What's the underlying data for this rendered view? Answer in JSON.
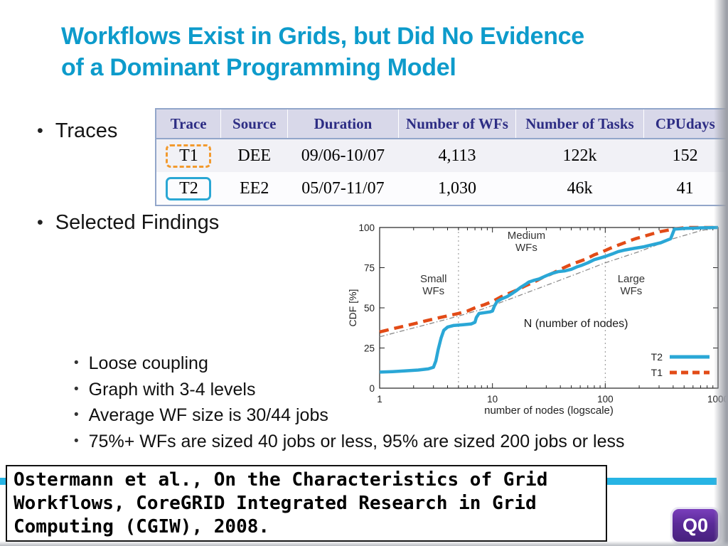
{
  "slide": {
    "title_line1": "Workflows Exist in Grids, but Did No Evidence",
    "title_line2": "of a Dominant Programming Model",
    "title_color": "#0d9bcb",
    "bullet_traces": "Traces",
    "bullet_findings": "Selected Findings",
    "sub_bullets": [
      "Loose coupling",
      "Graph with 3-4 levels",
      "Average WF size is 30/44 jobs",
      "75%+ WFs are sized 40 jobs or less, 95% are sized 200 jobs or less"
    ],
    "citation_lines": [
      "Ostermann et al., On the Characteristics of Grid",
      "Workflows, CoreGRID Integrated Research in Grid",
      "Computing (CGIW), 2008."
    ],
    "badge_label": "Q0",
    "accent_bar_color": "#27b4e4",
    "badge_color": "#5a2a98"
  },
  "table": {
    "headers": [
      "Trace",
      "Source",
      "Duration",
      "Number of WFs",
      "Number of Tasks",
      "CPUdays"
    ],
    "rows": [
      {
        "trace": "T1",
        "source": "DEE",
        "duration": "09/06-10/07",
        "num_wfs": "4,113",
        "num_tasks": "122k",
        "cpudays": "152",
        "highlight": "dashed-orange"
      },
      {
        "trace": "T2",
        "source": "EE2",
        "duration": "05/07-11/07",
        "num_wfs": "1,030",
        "num_tasks": "46k",
        "cpudays": "41",
        "highlight": "solid-blue"
      }
    ]
  },
  "chart_data": {
    "type": "line",
    "title": "",
    "xlabel": "number of nodes (logscale)",
    "ylabel": "CDF [%]",
    "x_scale": "log",
    "xlim": [
      1,
      1000
    ],
    "ylim": [
      0,
      100
    ],
    "x_ticks": [
      1,
      10,
      100,
      1000
    ],
    "y_ticks": [
      0,
      25,
      50,
      75,
      100
    ],
    "grid": "region-dividers-only",
    "region_dividers_x": [
      5,
      100
    ],
    "legend": [
      "T2",
      "T1"
    ],
    "legend_position": "inside-bottom-right",
    "annotations": [
      {
        "lines": [
          "Small",
          "WFs"
        ],
        "x": 3,
        "y": 66,
        "size": "normal"
      },
      {
        "lines": [
          "Medium",
          "WFs"
        ],
        "x": 20,
        "y": 93,
        "size": "normal"
      },
      {
        "lines": [
          "Large",
          "WFs"
        ],
        "x": 170,
        "y": 66,
        "size": "normal"
      },
      {
        "lines": [
          "N (number of nodes)"
        ],
        "x": 55,
        "y": 38,
        "size": "large"
      }
    ],
    "series": [
      {
        "name": "trend",
        "color": "#8a8a8a",
        "dash": "7 3 1.5 3",
        "width": 1.3,
        "in_legend": false,
        "points": [
          [
            1,
            32
          ],
          [
            2,
            37.5
          ],
          [
            4,
            43
          ],
          [
            8,
            49
          ],
          [
            15,
            56
          ],
          [
            30,
            64
          ],
          [
            60,
            72
          ],
          [
            100,
            78
          ],
          [
            200,
            85
          ],
          [
            400,
            93
          ],
          [
            700,
            98
          ],
          [
            1000,
            100
          ]
        ]
      },
      {
        "name": "T1",
        "color": "#e24b17",
        "dash": "13 8",
        "width": 4.5,
        "in_legend": true,
        "points": [
          [
            1,
            35
          ],
          [
            1.4,
            37.5
          ],
          [
            2,
            40
          ],
          [
            2.6,
            42
          ],
          [
            3.2,
            43.5
          ],
          [
            4,
            45
          ],
          [
            5,
            46.5
          ],
          [
            6,
            48
          ],
          [
            7,
            50
          ],
          [
            8.5,
            52
          ],
          [
            10,
            54
          ],
          [
            12,
            57
          ],
          [
            14,
            59
          ],
          [
            17,
            61.5
          ],
          [
            20,
            64
          ],
          [
            24,
            66.5
          ],
          [
            28,
            69
          ],
          [
            33,
            71
          ],
          [
            40,
            74
          ],
          [
            48,
            76.5
          ],
          [
            57,
            78.5
          ],
          [
            68,
            80.5
          ],
          [
            80,
            83
          ],
          [
            95,
            85
          ],
          [
            110,
            87
          ],
          [
            130,
            89
          ],
          [
            155,
            91
          ],
          [
            185,
            93
          ],
          [
            220,
            94.5
          ],
          [
            260,
            96
          ],
          [
            310,
            97.5
          ],
          [
            370,
            98.5
          ],
          [
            430,
            99.3
          ],
          [
            520,
            100
          ],
          [
            1000,
            100
          ]
        ]
      },
      {
        "name": "T2",
        "color": "#2aa7d6",
        "dash": "",
        "width": 4.5,
        "in_legend": true,
        "points": [
          [
            1,
            10
          ],
          [
            1.3,
            10.3
          ],
          [
            1.7,
            10.8
          ],
          [
            2.2,
            11.3
          ],
          [
            2.7,
            12
          ],
          [
            3,
            13
          ],
          [
            3.15,
            17
          ],
          [
            3.3,
            24
          ],
          [
            3.5,
            31
          ],
          [
            3.7,
            36
          ],
          [
            4,
            38
          ],
          [
            4.5,
            39
          ],
          [
            5.5,
            39.5
          ],
          [
            6.5,
            40
          ],
          [
            7,
            41
          ],
          [
            7.2,
            44
          ],
          [
            7.6,
            46.5
          ],
          [
            8.5,
            47
          ],
          [
            9.5,
            47.5
          ],
          [
            10,
            48
          ],
          [
            10.4,
            51
          ],
          [
            11,
            54
          ],
          [
            12,
            55.5
          ],
          [
            13.5,
            57
          ],
          [
            15,
            59
          ],
          [
            16.5,
            61
          ],
          [
            18,
            63
          ],
          [
            20,
            65
          ],
          [
            21,
            66
          ],
          [
            23,
            67
          ],
          [
            26,
            68
          ],
          [
            30,
            70
          ],
          [
            34,
            71.5
          ],
          [
            38,
            72.5
          ],
          [
            44,
            73
          ],
          [
            50,
            74
          ],
          [
            56,
            75.5
          ],
          [
            62,
            76.5
          ],
          [
            70,
            78
          ],
          [
            80,
            80
          ],
          [
            90,
            81
          ],
          [
            100,
            82
          ],
          [
            115,
            83.5
          ],
          [
            130,
            85
          ],
          [
            150,
            86
          ],
          [
            180,
            87
          ],
          [
            220,
            88
          ],
          [
            270,
            89.5
          ],
          [
            310,
            90.5
          ],
          [
            350,
            92
          ],
          [
            380,
            93
          ],
          [
            395,
            96
          ],
          [
            410,
            99
          ],
          [
            460,
            99.2
          ],
          [
            520,
            99.5
          ],
          [
            600,
            99.6
          ],
          [
            700,
            99.8
          ],
          [
            1000,
            100
          ]
        ]
      }
    ]
  }
}
